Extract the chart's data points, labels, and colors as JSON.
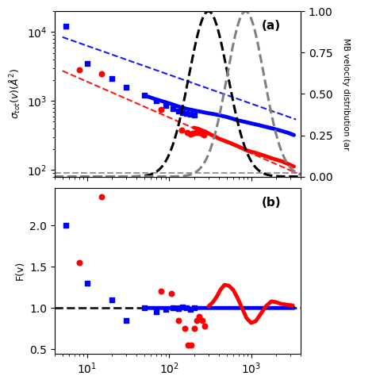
{
  "title_a": "(a)",
  "title_b": "(b)",
  "ylabel_a": "$\\sigma_{tot}(v)(\\AA^2)$",
  "ylabel_b": "F(v)",
  "ylabel_a2": "MB velocity distribution (ar",
  "xlim": [
    4,
    4000
  ],
  "ylim_a": [
    80,
    20000
  ],
  "ylim_b": [
    0.45,
    2.45
  ],
  "ylim_a2": [
    0.0,
    1.0
  ],
  "blue_scatter_x": [
    5.5,
    10,
    20,
    30,
    50,
    70,
    90,
    110,
    130,
    145,
    160,
    180,
    200
  ],
  "blue_scatter_y": [
    12000,
    3500,
    2100,
    1600,
    1200,
    1000,
    870,
    780,
    720,
    680,
    660,
    640,
    620
  ],
  "red_scatter_x": [
    8,
    15,
    80,
    140,
    165,
    180,
    195,
    210,
    225,
    245,
    265
  ],
  "red_scatter_y": [
    2800,
    2500,
    750,
    380,
    350,
    330,
    340,
    350,
    350,
    340,
    320
  ],
  "blue_line_x_start": 5,
  "blue_line_x_end": 3500,
  "blue_line_slope": -0.42,
  "blue_line_intercept_log": 4.22,
  "red_line_x_start": 5,
  "red_line_x_end": 3500,
  "red_line_slope": -0.52,
  "red_line_intercept_log": 3.8,
  "gray_dashes_y": 90,
  "black_mb_peak": 300,
  "black_mb_sigma": 0.55,
  "gray_mb_peak": 850,
  "gray_mb_sigma": 0.52,
  "blue_curve_dense_x": [
    50,
    70,
    90,
    110,
    130,
    150,
    170,
    190,
    210,
    240,
    270,
    310,
    360,
    420,
    490,
    570,
    660,
    760,
    880,
    1020,
    1200,
    1400,
    1650,
    1950,
    2300,
    2800,
    3300
  ],
  "blue_curve_dense_y": [
    1200,
    1050,
    960,
    890,
    830,
    790,
    760,
    740,
    720,
    700,
    680,
    660,
    640,
    615,
    590,
    560,
    530,
    510,
    490,
    470,
    450,
    430,
    410,
    390,
    370,
    345,
    320
  ],
  "red_curve_dense_x": [
    200,
    225,
    250,
    275,
    300,
    330,
    360,
    400,
    450,
    510,
    580,
    660,
    750,
    850,
    970,
    1100,
    1280,
    1500,
    1750,
    2050,
    2400,
    2800,
    3300
  ],
  "red_curve_dense_y": [
    410,
    395,
    375,
    360,
    340,
    320,
    305,
    285,
    270,
    255,
    240,
    225,
    210,
    195,
    185,
    178,
    168,
    158,
    148,
    140,
    132,
    122,
    112
  ],
  "b_blue_scatter_x": [
    5.5,
    10,
    20,
    30,
    50,
    70,
    90,
    110,
    130,
    145,
    160,
    180,
    200
  ],
  "b_blue_scatter_y": [
    2.0,
    1.3,
    1.1,
    0.85,
    1.0,
    0.95,
    0.98,
    1.0,
    0.99,
    1.01,
    1.0,
    0.98,
    1.0
  ],
  "b_red_scatter_x": [
    8,
    15,
    80,
    105,
    130,
    155,
    170,
    185,
    200,
    215,
    230,
    250,
    270
  ],
  "b_red_scatter_y": [
    1.55,
    2.35,
    1.2,
    1.18,
    0.85,
    0.75,
    0.55,
    0.55,
    0.75,
    0.85,
    0.9,
    0.85,
    0.78
  ],
  "b_blue_curve_x": [
    50,
    70,
    90,
    110,
    130,
    150,
    170,
    190,
    210,
    240,
    270,
    310,
    360,
    420,
    490,
    570,
    660,
    760,
    880,
    1020,
    1200,
    1400,
    1650,
    1950,
    2300,
    2800,
    3300
  ],
  "b_blue_curve_y": [
    1.0,
    1.0,
    1.0,
    1.0,
    1.01,
    1.0,
    1.0,
    0.99,
    1.0,
    1.0,
    1.0,
    1.0,
    1.0,
    1.0,
    1.0,
    1.0,
    1.0,
    1.0,
    1.0,
    1.0,
    1.0,
    1.0,
    1.0,
    1.0,
    1.0,
    1.0,
    1.0
  ],
  "b_red_curve_x": [
    300,
    340,
    380,
    420,
    470,
    530,
    600,
    680,
    770,
    870,
    990,
    1130,
    1300,
    1500,
    1750,
    2000,
    2300,
    2700,
    3200
  ],
  "b_red_curve_y": [
    1.02,
    1.07,
    1.14,
    1.22,
    1.28,
    1.27,
    1.22,
    1.12,
    1.0,
    0.88,
    0.82,
    0.84,
    0.93,
    1.02,
    1.08,
    1.07,
    1.05,
    1.04,
    1.03
  ]
}
